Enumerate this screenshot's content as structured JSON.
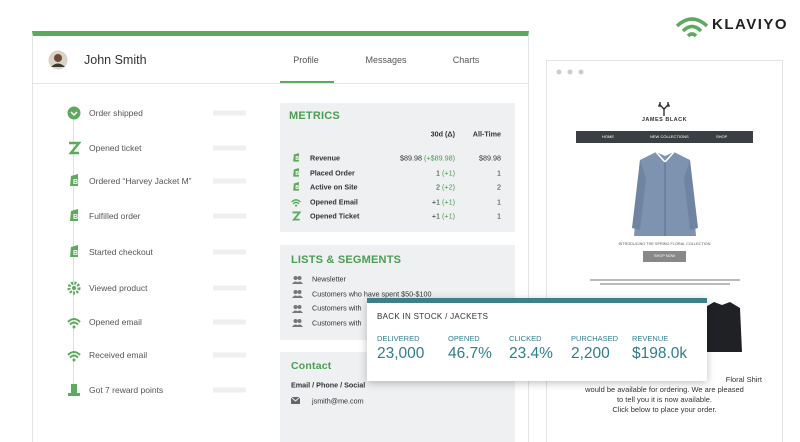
{
  "logo": {
    "text": "KLAVIYO"
  },
  "profile": {
    "name": "John Smith",
    "tabs": [
      "Profile",
      "Messages",
      "Charts"
    ]
  },
  "timeline": [
    "Order shipped",
    "Opened ticket",
    "Ordered “Harvey Jacket M”",
    "Fulfilled order",
    "Started checkout",
    "Viewed product",
    "Opened email",
    "Received email",
    "Got 7 reward points"
  ],
  "metrics": {
    "title": "METRICS",
    "columns": [
      "30d (Δ)",
      "All-Time"
    ],
    "rows": [
      {
        "label": "Revenue",
        "value": "$89.98",
        "delta": "(+$89.98)",
        "all_time": "$89.98"
      },
      {
        "label": "Placed Order",
        "value": "1",
        "delta": "(+1)",
        "all_time": "1"
      },
      {
        "label": "Active on Site",
        "value": "2",
        "delta": "(+2)",
        "all_time": "2"
      },
      {
        "label": "Opened Email",
        "value": "+1",
        "delta": "(+1)",
        "all_time": "1"
      },
      {
        "label": "Opened Ticket",
        "value": "+1",
        "delta": "(+1)",
        "all_time": "1"
      }
    ]
  },
  "lists": {
    "title": "LISTS & SEGMENTS",
    "items": [
      "Newsletter",
      "Customers who have spent $50-$100",
      "Customers with",
      "Customers with"
    ]
  },
  "contact": {
    "title": "Contact",
    "subtitle": "Email / Phone / Social",
    "email": "jsmith@me.com"
  },
  "campaign": {
    "title": "BACK IN STOCK / JACKETS",
    "stats": [
      {
        "label": "DELIVERED",
        "value": "23,000"
      },
      {
        "label": "OPENED",
        "value": "46.7%"
      },
      {
        "label": "CLICKED",
        "value": "23.4%"
      },
      {
        "label": "PURCHASED",
        "value": "2,200"
      },
      {
        "label": "REVENUE",
        "value": "$198.0k"
      }
    ]
  },
  "email_preview": {
    "brand": "JAMES BLACK",
    "nav": [
      "HOME",
      "NEW COLLECTIONS",
      "SHOP"
    ],
    "headline": "INTRODUCING THE SPRING FLORAL COLLECTION",
    "button": "SHOP NOW",
    "body": [
      "Floral Shirt",
      "would be available for ordering. We are pleased",
      "to tell you it is now available.",
      "Click below to place your order."
    ]
  }
}
